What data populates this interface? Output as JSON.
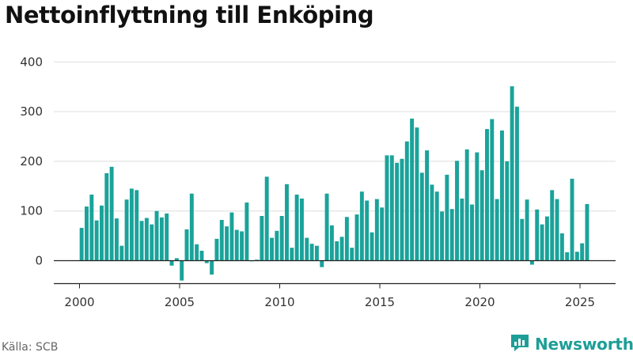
{
  "title": "Nettoinflyttning till Enköping",
  "source": "Källa: SCB",
  "brand": {
    "name": "Newsworthy",
    "icon": "newsworthy-logo-icon",
    "color": "#1d9e97"
  },
  "colors": {
    "bar": "#1aa39a",
    "grid": "#dddddd",
    "axis": "#222222"
  },
  "chart_data": {
    "type": "bar",
    "title": "Nettoinflyttning till Enköping",
    "xlabel": "",
    "ylabel": "",
    "frequency": "quarterly",
    "x_start": "2000-Q1",
    "ylim": [
      -45,
      420
    ],
    "yticks": [
      0,
      100,
      200,
      300,
      400
    ],
    "xticks": [
      2000,
      2005,
      2010,
      2015,
      2020,
      2025
    ],
    "grid": true,
    "values": [
      66,
      109,
      133,
      81,
      111,
      176,
      189,
      85,
      30,
      123,
      145,
      142,
      80,
      86,
      73,
      100,
      87,
      95,
      -10,
      5,
      -40,
      63,
      135,
      33,
      20,
      -5,
      -28,
      44,
      82,
      69,
      97,
      62,
      59,
      117,
      0,
      2,
      90,
      169,
      46,
      60,
      90,
      154,
      26,
      133,
      125,
      46,
      34,
      30,
      -13,
      135,
      71,
      39,
      48,
      88,
      26,
      93,
      139,
      121,
      57,
      124,
      107,
      212,
      212,
      197,
      205,
      240,
      286,
      268,
      177,
      222,
      153,
      139,
      99,
      173,
      104,
      201,
      125,
      224,
      113,
      218,
      182,
      265,
      285,
      124,
      262,
      200,
      351,
      310,
      84,
      123,
      -8,
      103,
      73,
      89,
      142,
      124,
      55,
      17,
      165,
      18,
      35,
      114
    ]
  }
}
